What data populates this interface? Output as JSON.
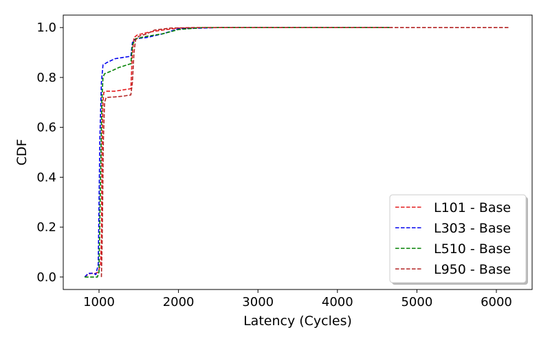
{
  "chart_data": {
    "type": "line",
    "title": "",
    "xlabel": "Latency (Cycles)",
    "ylabel": "CDF",
    "xlim": [
      550,
      6450
    ],
    "ylim": [
      -0.05,
      1.05
    ],
    "xticks": [
      1000,
      2000,
      3000,
      4000,
      5000,
      6000
    ],
    "yticks": [
      0.0,
      0.2,
      0.4,
      0.6,
      0.8,
      1.0
    ],
    "xtick_labels": [
      "1000",
      "2000",
      "3000",
      "4000",
      "5000",
      "6000"
    ],
    "ytick_labels": [
      "0.0",
      "0.2",
      "0.4",
      "0.6",
      "0.8",
      "1.0"
    ],
    "grid": false,
    "legend_position": "lower-right",
    "line_style": "dashed",
    "series": [
      {
        "name": "L101 - Base",
        "color": "#e41a1c",
        "points": [
          [
            820,
            0.0
          ],
          [
            860,
            0.01
          ],
          [
            900,
            0.015
          ],
          [
            960,
            0.015
          ],
          [
            990,
            0.02
          ],
          [
            1020,
            0.05
          ],
          [
            1030,
            0.15
          ],
          [
            1040,
            0.55
          ],
          [
            1050,
            0.7
          ],
          [
            1060,
            0.74
          ],
          [
            1100,
            0.745
          ],
          [
            1200,
            0.745
          ],
          [
            1300,
            0.75
          ],
          [
            1400,
            0.755
          ],
          [
            1420,
            0.9
          ],
          [
            1440,
            0.96
          ],
          [
            1480,
            0.97
          ],
          [
            1600,
            0.98
          ],
          [
            1800,
            0.99
          ],
          [
            2000,
            0.998
          ],
          [
            2500,
            1.0
          ],
          [
            3500,
            1.0
          ],
          [
            4650,
            1.0
          ]
        ]
      },
      {
        "name": "L303 - Base",
        "color": "#0000ee",
        "points": [
          [
            820,
            0.0
          ],
          [
            850,
            0.01
          ],
          [
            870,
            0.015
          ],
          [
            930,
            0.015
          ],
          [
            960,
            0.01
          ],
          [
            990,
            0.05
          ],
          [
            1010,
            0.55
          ],
          [
            1030,
            0.78
          ],
          [
            1050,
            0.85
          ],
          [
            1100,
            0.86
          ],
          [
            1200,
            0.875
          ],
          [
            1300,
            0.88
          ],
          [
            1400,
            0.885
          ],
          [
            1420,
            0.94
          ],
          [
            1460,
            0.955
          ],
          [
            1600,
            0.96
          ],
          [
            1800,
            0.975
          ],
          [
            2000,
            0.995
          ],
          [
            2500,
            1.0
          ],
          [
            3500,
            1.0
          ],
          [
            4680,
            1.0
          ]
        ]
      },
      {
        "name": "L510 - Base",
        "color": "#008000",
        "points": [
          [
            820,
            0.0
          ],
          [
            980,
            0.0
          ],
          [
            1000,
            0.02
          ],
          [
            1020,
            0.4
          ],
          [
            1035,
            0.7
          ],
          [
            1050,
            0.8
          ],
          [
            1070,
            0.815
          ],
          [
            1150,
            0.825
          ],
          [
            1250,
            0.84
          ],
          [
            1350,
            0.85
          ],
          [
            1400,
            0.855
          ],
          [
            1420,
            0.93
          ],
          [
            1460,
            0.955
          ],
          [
            1600,
            0.965
          ],
          [
            1800,
            0.975
          ],
          [
            2000,
            0.992
          ],
          [
            2300,
            1.0
          ],
          [
            3500,
            1.0
          ],
          [
            4690,
            1.0
          ]
        ]
      },
      {
        "name": "L950 - Base",
        "color": "#b22222",
        "points": [
          [
            1030,
            0.0
          ],
          [
            1040,
            0.15
          ],
          [
            1055,
            0.55
          ],
          [
            1070,
            0.7
          ],
          [
            1090,
            0.72
          ],
          [
            1200,
            0.722
          ],
          [
            1300,
            0.725
          ],
          [
            1400,
            0.73
          ],
          [
            1420,
            0.78
          ],
          [
            1440,
            0.9
          ],
          [
            1460,
            0.95
          ],
          [
            1500,
            0.965
          ],
          [
            1600,
            0.975
          ],
          [
            1700,
            0.99
          ],
          [
            1900,
            0.998
          ],
          [
            2200,
            1.0
          ],
          [
            4000,
            1.0
          ],
          [
            6160,
            1.0
          ]
        ]
      }
    ]
  }
}
